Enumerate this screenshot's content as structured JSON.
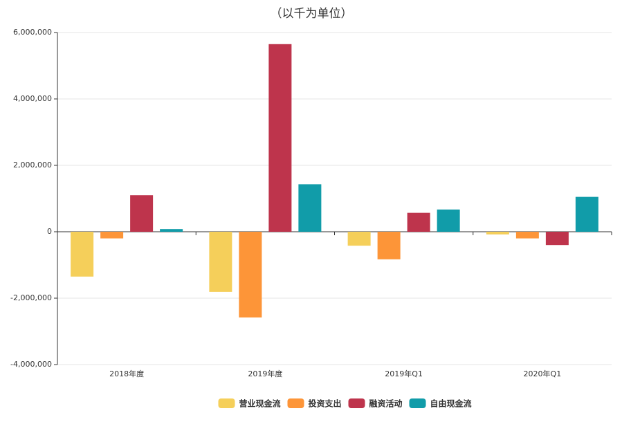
{
  "chart_data": {
    "type": "bar",
    "title": "（以千为单位）",
    "categories": [
      "2018年度",
      "2019年度",
      "2019年Q1",
      "2020年Q1"
    ],
    "series": [
      {
        "name": "营业现金流",
        "color": "#f5cf5a",
        "values": [
          -1350000,
          -1810000,
          -420000,
          -80000
        ]
      },
      {
        "name": "投资支出",
        "color": "#fd9538",
        "values": [
          -200000,
          -2580000,
          -830000,
          -200000
        ]
      },
      {
        "name": "融资活动",
        "color": "#be344c",
        "values": [
          1100000,
          5650000,
          570000,
          -400000
        ]
      },
      {
        "name": "自由现金流",
        "color": "#119ca9",
        "values": [
          80000,
          1430000,
          670000,
          1050000
        ]
      }
    ],
    "ylim": [
      -4000000,
      6000000
    ],
    "yticks": [
      {
        "value": -4000000,
        "label": "-4,000,000"
      },
      {
        "value": -2000000,
        "label": "-2,000,000"
      },
      {
        "value": 0,
        "label": "0"
      },
      {
        "value": 2000000,
        "label": "2,000,000"
      },
      {
        "value": 4000000,
        "label": "4,000,000"
      },
      {
        "value": 6000000,
        "label": "6,000,000"
      }
    ],
    "grid": true,
    "legend": "bottom"
  }
}
